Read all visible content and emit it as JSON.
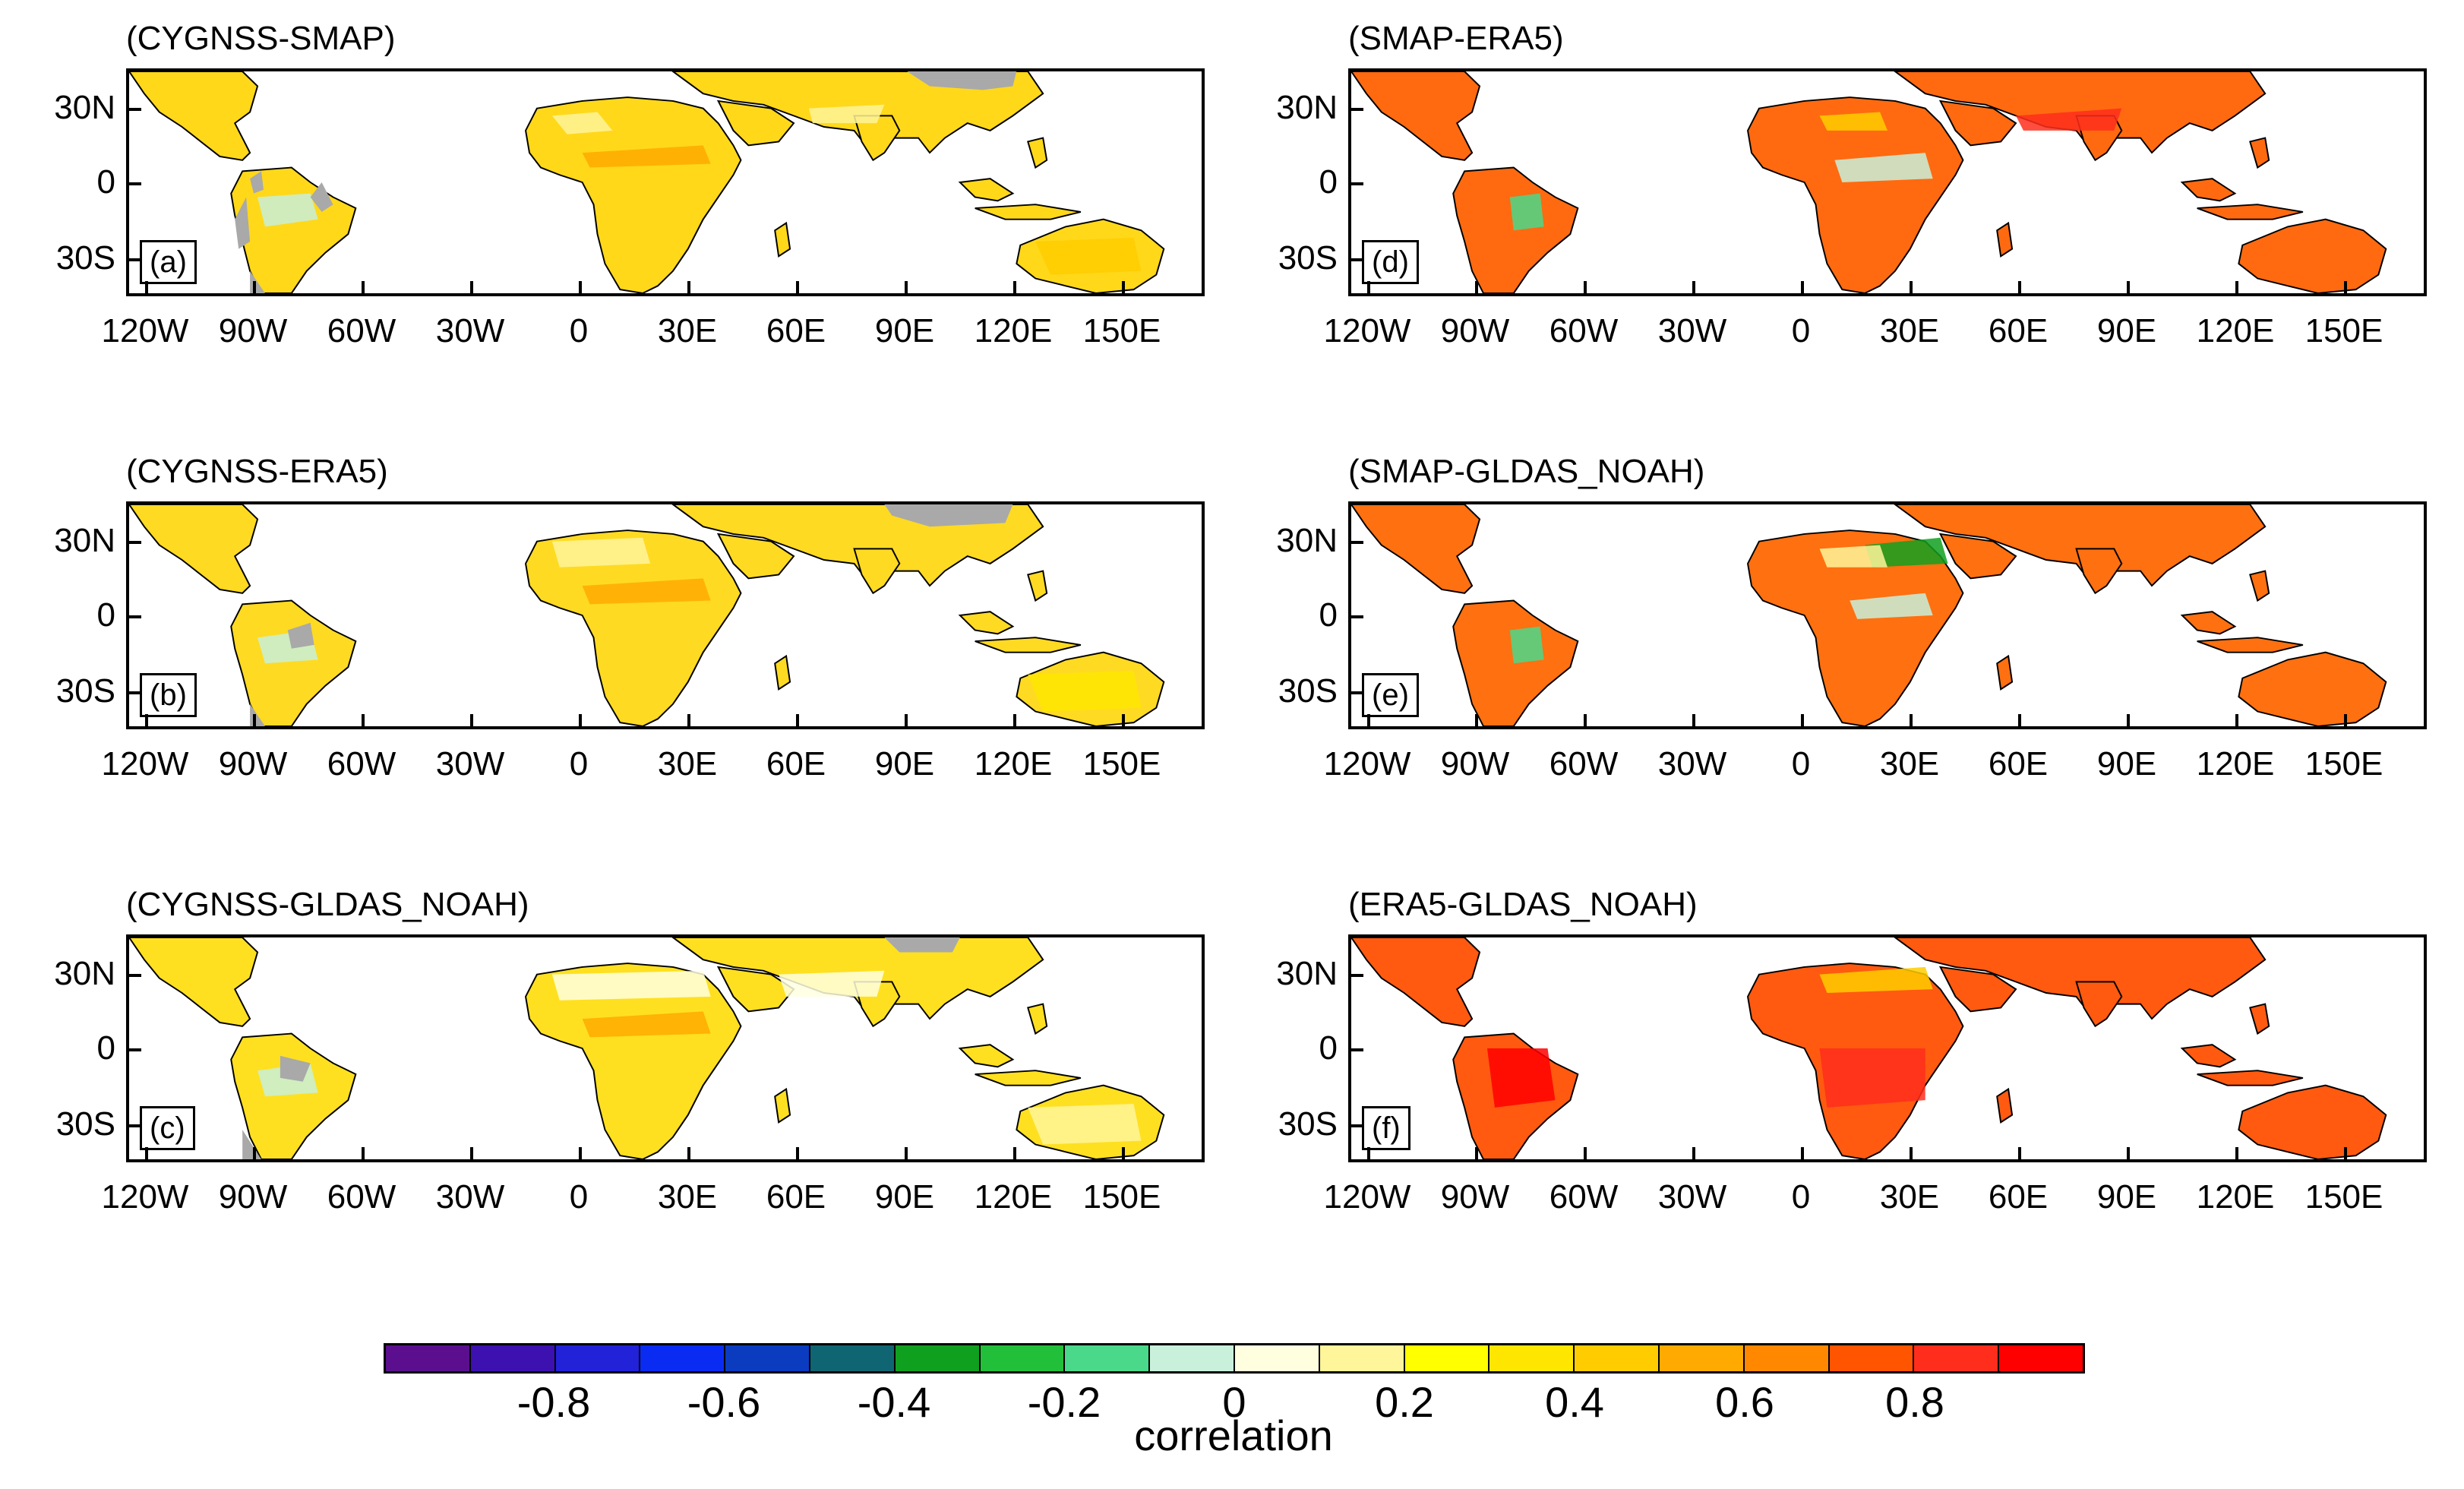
{
  "colors": {
    "land_gray": "#a9a9a9",
    "ocean": "#ffffff",
    "colorbar": [
      "#5b0f8f",
      "#3d10b0",
      "#2222d8",
      "#0a2cf2",
      "#0b3cc0",
      "#0f6672",
      "#10a020",
      "#22c03a",
      "#4ad88a",
      "#c8f0da",
      "#ffffe0",
      "#fff59a",
      "#ffff00",
      "#ffe600",
      "#ffcc00",
      "#ffaa00",
      "#ff8800",
      "#ff5500",
      "#ff2e1c",
      "#ff0000"
    ]
  },
  "axis": {
    "y_labels": [
      "30N",
      "0",
      "30S"
    ],
    "x_labels_left": [
      "120W",
      "90W",
      "60W",
      "30W",
      "0",
      "30E",
      "60E",
      "90E",
      "120E",
      "150E"
    ],
    "x_labels_right": [
      "120W",
      "90W",
      "60W",
      "30W",
      "0",
      "30E",
      "60E",
      "90E",
      "120E",
      "150E"
    ]
  },
  "panels": [
    {
      "title": "(CYGNSS-SMAP)",
      "label": "(a)",
      "fill": "#ffd81a"
    },
    {
      "title": "(SMAP-ERA5)",
      "label": "(d)",
      "fill": "#ff6a10"
    },
    {
      "title": "(CYGNSS-ERA5)",
      "label": "(b)",
      "fill": "#ffda22"
    },
    {
      "title": "(SMAP-GLDAS_NOAH)",
      "label": "(e)",
      "fill": "#ff7010"
    },
    {
      "title": "(CYGNSS-GLDAS_NOAH)",
      "label": "(c)",
      "fill": "#ffe020"
    },
    {
      "title": "(ERA5-GLDAS_NOAH)",
      "label": "(f)",
      "fill": "#ff5a10"
    }
  ],
  "colorbar": {
    "tick_labels": [
      "-0.8",
      "-0.6",
      "-0.4",
      "-0.2",
      "0",
      "0.2",
      "0.4",
      "0.6",
      "0.8"
    ],
    "title": "correlation"
  }
}
